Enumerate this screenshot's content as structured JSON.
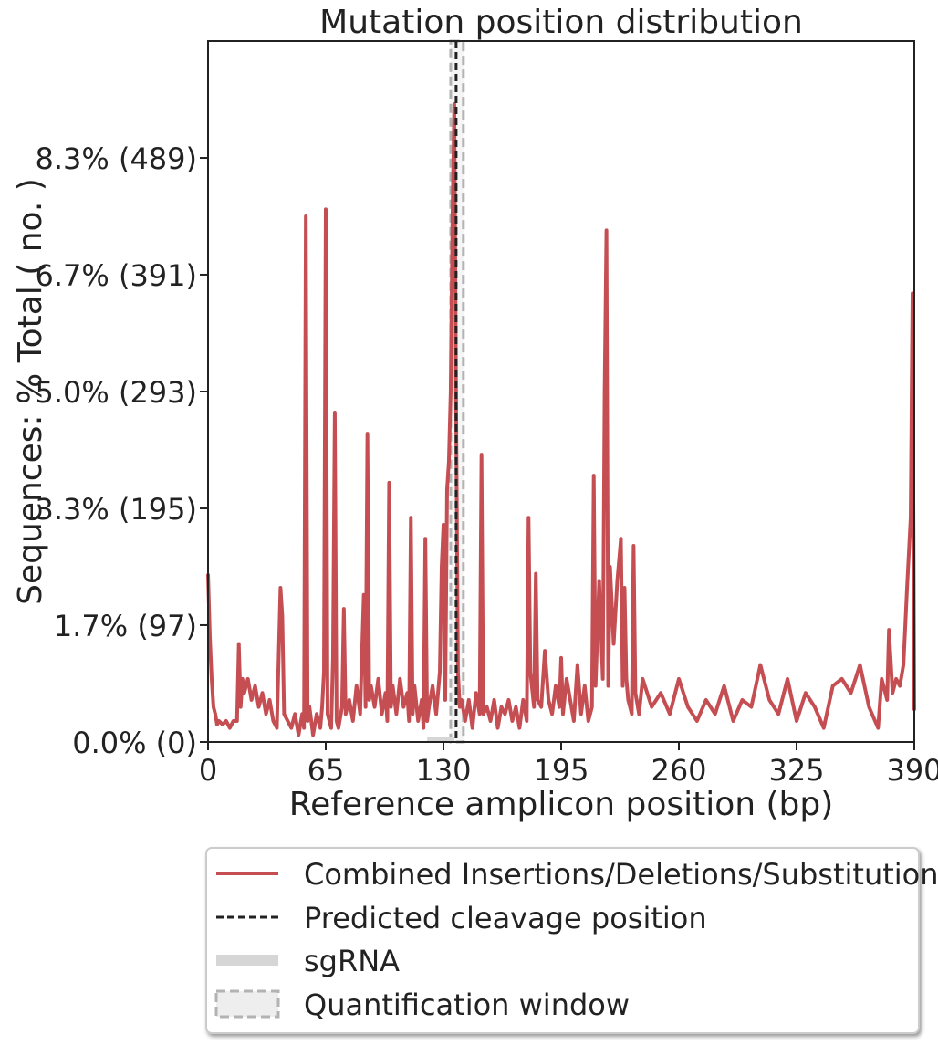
{
  "chart_data": {
    "type": "line",
    "title": "Mutation position distribution",
    "x_label": "Reference amplicon position (bp)",
    "y_label": "Sequences: % Total ( no. )",
    "x": [
      0,
      1,
      2,
      3,
      4,
      5,
      6,
      8,
      10,
      12,
      14,
      16,
      17,
      18,
      19,
      20,
      22,
      24,
      26,
      28,
      30,
      32,
      34,
      36,
      38,
      39,
      40,
      41,
      42,
      44,
      46,
      48,
      50,
      52,
      53,
      54,
      55,
      56,
      58,
      60,
      62,
      63,
      64,
      65,
      66,
      68,
      69,
      70,
      71,
      72,
      74,
      75,
      76,
      78,
      80,
      82,
      84,
      86,
      87,
      88,
      89,
      90,
      92,
      94,
      96,
      98,
      99,
      100,
      101,
      102,
      104,
      106,
      108,
      110,
      111,
      112,
      113,
      114,
      116,
      118,
      119,
      120,
      121,
      122,
      124,
      126,
      128,
      129,
      130,
      131,
      132,
      133,
      134,
      135,
      136,
      137,
      138,
      139,
      140,
      142,
      144,
      146,
      148,
      150,
      151,
      152,
      154,
      156,
      158,
      160,
      162,
      164,
      166,
      168,
      170,
      172,
      174,
      176,
      177,
      178,
      180,
      181,
      182,
      184,
      186,
      188,
      190,
      192,
      194,
      195,
      196,
      198,
      200,
      202,
      204,
      206,
      208,
      210,
      212,
      213,
      214,
      216,
      218,
      219,
      220,
      221,
      222,
      224,
      226,
      228,
      229,
      230,
      231,
      232,
      234,
      235,
      236,
      238,
      240,
      245,
      250,
      255,
      260,
      265,
      270,
      275,
      280,
      285,
      290,
      295,
      300,
      305,
      310,
      315,
      320,
      325,
      330,
      335,
      340,
      345,
      350,
      355,
      360,
      365,
      370,
      372,
      375,
      376,
      378,
      380,
      382,
      384,
      386,
      388,
      389,
      390
    ],
    "series": [
      {
        "name": "Combined Insertions/Deletions/Substitutions",
        "color": "#c44e52",
        "values": [
          2.4,
          1.5,
          0.9,
          0.5,
          0.4,
          0.25,
          0.3,
          0.25,
          0.3,
          0.2,
          0.3,
          0.3,
          1.4,
          0.5,
          0.9,
          0.7,
          0.9,
          0.6,
          0.8,
          0.5,
          0.7,
          0.4,
          0.6,
          0.3,
          0.2,
          1.2,
          2.2,
          1.8,
          0.4,
          0.3,
          0.2,
          0.4,
          0.1,
          0.4,
          0.2,
          7.5,
          0.3,
          0.5,
          0.1,
          0.4,
          0.2,
          0.5,
          1.0,
          7.6,
          0.4,
          0.2,
          1.2,
          4.7,
          0.3,
          0.2,
          0.5,
          1.9,
          0.4,
          0.6,
          0.3,
          0.8,
          0.4,
          2.1,
          0.5,
          4.4,
          0.6,
          0.8,
          0.5,
          0.9,
          0.4,
          0.7,
          0.3,
          3.7,
          0.5,
          0.8,
          0.4,
          0.9,
          0.5,
          0.7,
          0.3,
          3.2,
          0.4,
          0.8,
          0.3,
          0.6,
          0.2,
          2.9,
          0.3,
          0.5,
          0.8,
          0.4,
          1.0,
          2.5,
          3.1,
          0.6,
          3.6,
          4.0,
          5.0,
          7.5,
          9.1,
          4.8,
          1.0,
          0.5,
          0.6,
          0.3,
          0.6,
          0.2,
          0.7,
          0.4,
          4.1,
          0.4,
          0.5,
          0.3,
          0.6,
          0.2,
          0.5,
          0.4,
          0.6,
          0.3,
          0.5,
          0.2,
          0.6,
          0.3,
          3.2,
          1.0,
          0.5,
          2.4,
          0.6,
          0.5,
          1.3,
          0.6,
          0.4,
          0.8,
          0.5,
          1.2,
          0.4,
          0.9,
          0.6,
          0.3,
          1.1,
          0.4,
          0.8,
          0.3,
          0.5,
          3.8,
          0.8,
          2.3,
          0.9,
          5.0,
          7.3,
          0.8,
          2.5,
          1.4,
          2.3,
          2.9,
          0.8,
          2.2,
          0.9,
          0.6,
          0.4,
          2.8,
          0.7,
          0.4,
          0.9,
          0.5,
          0.7,
          0.4,
          0.9,
          0.5,
          0.3,
          0.6,
          0.4,
          0.8,
          0.3,
          0.6,
          0.5,
          1.1,
          0.6,
          0.4,
          0.9,
          0.3,
          0.7,
          0.5,
          0.2,
          0.8,
          0.9,
          0.7,
          1.1,
          0.5,
          0.2,
          0.9,
          0.6,
          1.6,
          0.7,
          0.9,
          0.8,
          1.1,
          2.2,
          3.2,
          6.4,
          0.45
        ]
      }
    ],
    "xlim": [
      0,
      390
    ],
    "xticks": [
      0,
      65,
      130,
      195,
      260,
      325,
      390
    ],
    "ylim": [
      0,
      10
    ],
    "yticks": [
      {
        "value": 0,
        "label": "0.0% (0)"
      },
      {
        "value": 1.667,
        "label": "1.7% (97)"
      },
      {
        "value": 3.333,
        "label": "3.3% (195)"
      },
      {
        "value": 5.0,
        "label": "5.0% (293)"
      },
      {
        "value": 6.667,
        "label": "6.7% (391)"
      },
      {
        "value": 8.333,
        "label": "8.3% (489)"
      }
    ],
    "cleavage_position": 137,
    "cleavage_label": "Predicted cleavage position",
    "cleavage_color": "#222222",
    "sgrna": [
      121,
      136
    ],
    "sgrna_label": "sgRNA",
    "sgrna_color": "#d6d6d6",
    "quantification_window": [
      134,
      141
    ],
    "quantification_label": "Quantification window",
    "window_color": "#b3b3b3"
  }
}
